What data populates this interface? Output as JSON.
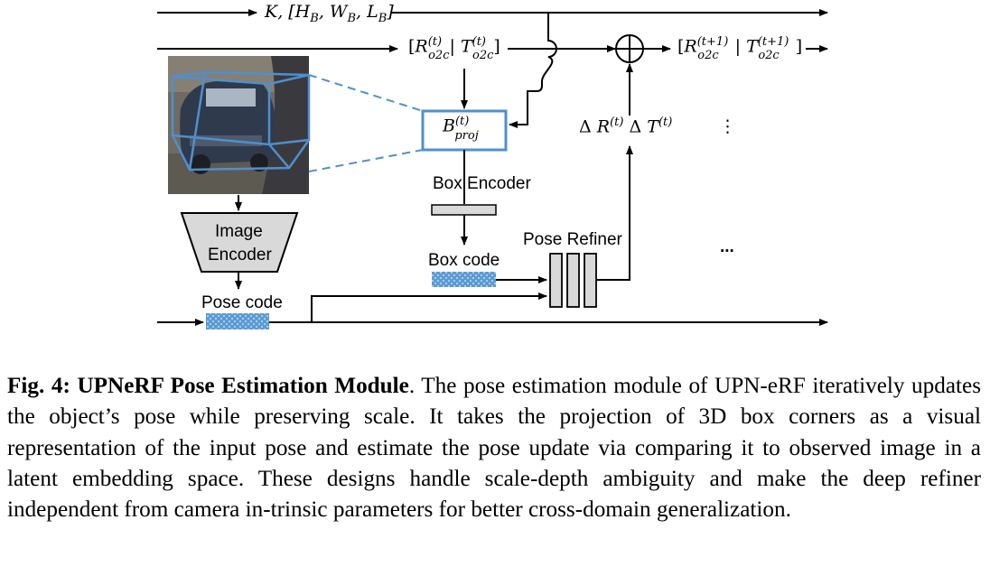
{
  "figure": {
    "inputs": {
      "intrinsics_label": "K, [H_B, W_B, L_B]",
      "pose_t_label": "[R_o2c^(t) | T_o2c^(t)]",
      "pose_t1_label": "[R_o2c^(t+1) | T_o2c^(t+1)]",
      "bproj_label": "B_proj^(t)",
      "delta_label": "Δ R^(t) Δ T^(t)"
    },
    "labels": {
      "box_encoder": "Box Encoder",
      "box_code": "Box code",
      "pose_refiner": "Pose Refiner",
      "image_encoder_line1": "Image",
      "image_encoder_line2": "Encoder",
      "pose_code": "Pose code",
      "vdots": "⋮",
      "hdots": "..."
    },
    "colors": {
      "accent_blue": "#4f8fcf",
      "code_blue": "#5b9bd5",
      "encoder_gray": "#d9d9d9"
    }
  },
  "caption": {
    "label": "Fig. 4:",
    "title": "UPNeRF Pose Estimation Module",
    "body": ". The pose estimation module of UPN-eRF iteratively updates the object’s pose while preserving scale. It takes the projection of 3D box corners as a visual representation of the input pose and estimate the pose update via comparing it to observed image in a latent embedding space. These designs handle scale-depth ambiguity and make the deep refiner independent from camera in-trinsic parameters for better cross-domain generalization."
  }
}
